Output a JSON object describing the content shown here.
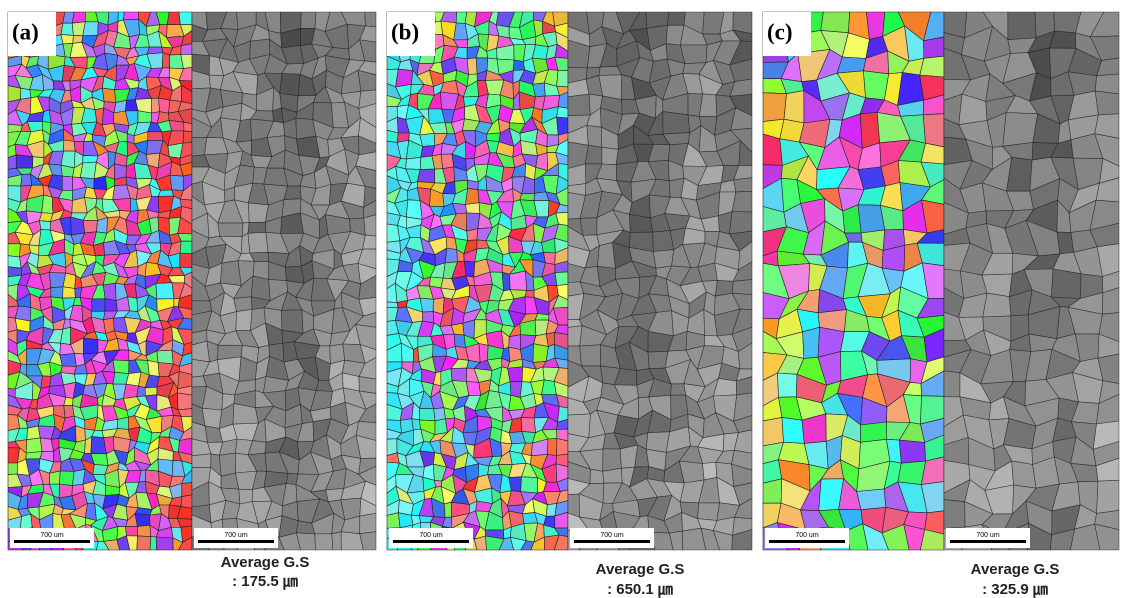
{
  "panels": [
    {
      "label": "(a)",
      "scale_bars": [
        "700 um",
        "700 um"
      ],
      "caption": [
        "Average G.S",
        ": 175.5 ㎛"
      ]
    },
    {
      "label": "(b)",
      "scale_bars": [
        "700 um",
        "700 um"
      ],
      "caption": [
        "Average G.S",
        ": 650.1 ㎛"
      ]
    },
    {
      "label": "(c)",
      "scale_bars": [
        "700 um",
        "700 um"
      ],
      "caption": [
        "Average G.S",
        ": 325.9 ㎛"
      ]
    }
  ]
}
